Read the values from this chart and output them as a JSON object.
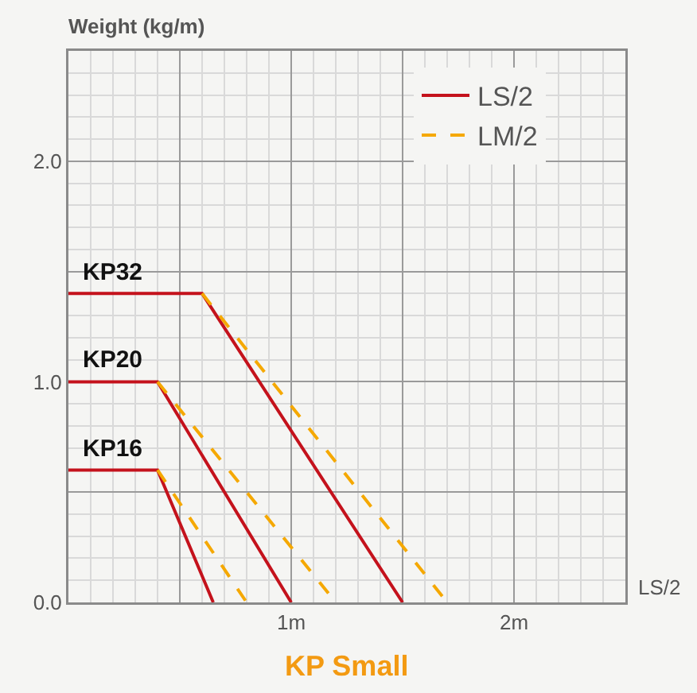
{
  "chart_data": {
    "type": "line",
    "title": "KP Small",
    "xlabel": "LS/2",
    "ylabel": "Weight (kg/m)",
    "series": [
      {
        "name": "LS/2",
        "color": "#c4121c",
        "line_style": "solid",
        "x": [
          0,
          0.4,
          0.65
        ],
        "values": [
          0.6,
          0.6,
          0
        ]
      },
      {
        "name": "LM/2",
        "color": "#f5a800",
        "line_style": "dashed",
        "x": [
          0.4,
          0.8
        ],
        "values": [
          0.6,
          0
        ]
      },
      {
        "color": "#c4121c",
        "line_style": "solid",
        "x": [
          0,
          0.4,
          1.0
        ],
        "values": [
          1.0,
          1.0,
          0
        ]
      },
      {
        "color": "#f5a800",
        "line_style": "dashed",
        "x": [
          0.4,
          1.2
        ],
        "values": [
          1.0,
          0
        ]
      },
      {
        "color": "#c4121c",
        "line_style": "solid",
        "x": [
          0,
          0.6,
          1.5
        ],
        "values": [
          1.4,
          1.4,
          0
        ]
      },
      {
        "color": "#f5a800",
        "line_style": "dashed",
        "x": [
          0.6,
          1.7
        ],
        "values": [
          1.4,
          0
        ]
      }
    ],
    "annotations": [
      {
        "text": "KP16",
        "y": 0.6
      },
      {
        "text": "KP20",
        "y": 1.0
      },
      {
        "text": "KP32",
        "y": 1.4
      }
    ],
    "xlim": [
      0,
      2.5
    ],
    "xticks": [
      {
        "value": 0.5,
        "label": null
      },
      {
        "value": 1,
        "label": "1m"
      },
      {
        "value": 1.5,
        "label": null
      },
      {
        "value": 2,
        "label": "2m"
      }
    ],
    "ylim": [
      0,
      2.5
    ],
    "yticks": [
      {
        "value": 0,
        "label": "0.0"
      },
      {
        "value": 0.5,
        "label": null
      },
      {
        "value": 1,
        "label": "1.0"
      },
      {
        "value": 1.5,
        "label": null
      },
      {
        "value": 2,
        "label": "2.0"
      }
    ],
    "grid": true,
    "legend": "top right",
    "marker": "none"
  }
}
